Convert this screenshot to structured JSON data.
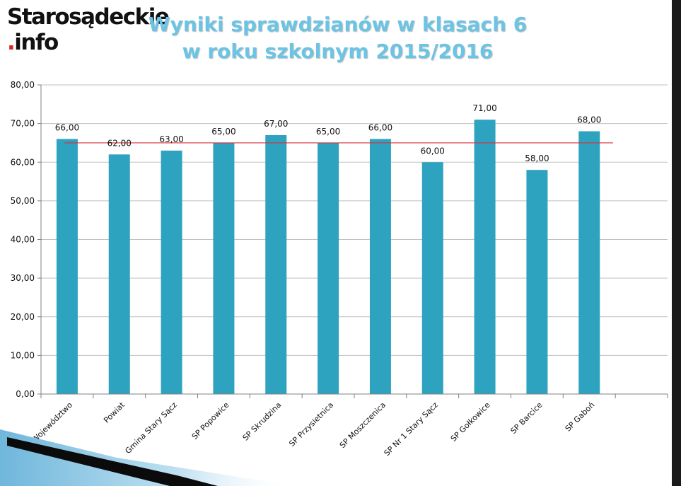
{
  "logo": {
    "line1": "Starosądeckie",
    "dot": ".",
    "line2": "info"
  },
  "title": {
    "line1": "Wyniki sprawdzianów w klasach 6",
    "line2": "w roku szkolnym 2015/2016"
  },
  "colors": {
    "bar": "#2ea3bf",
    "reference_line": "#d9303a",
    "title": "#6cc4e4",
    "grid": "#bfbfbf",
    "axis": "#808080"
  },
  "chart_data": {
    "type": "bar",
    "title": "Wyniki sprawdzianów w klasach 6 w roku szkolnym 2015/2016",
    "categories": [
      "Województwo",
      "Powiat",
      "Gmina Stary Sącz",
      "SP Popowice",
      "SP Skrudzina",
      "SP Przysietnica",
      "SP Moszczenica",
      "SP Nr 1 Stary Sącz",
      "SP Gołkowice",
      "SP Barcice",
      "SP Gaboń"
    ],
    "values": [
      66,
      62,
      63,
      65,
      67,
      65,
      66,
      60,
      71,
      58,
      68
    ],
    "value_labels": [
      "66,00",
      "62,00",
      "63,00",
      "65,00",
      "67,00",
      "65,00",
      "66,00",
      "60,00",
      "71,00",
      "58,00",
      "68,00"
    ],
    "y_ticks": [
      0,
      10,
      20,
      30,
      40,
      50,
      60,
      70,
      80
    ],
    "y_tick_labels": [
      "0,00",
      "10,00",
      "20,00",
      "30,00",
      "40,00",
      "50,00",
      "60,00",
      "70,00",
      "80,00"
    ],
    "ylim": [
      0,
      80
    ],
    "reference_line": 65,
    "grid": true,
    "xlabel": "",
    "ylabel": ""
  }
}
